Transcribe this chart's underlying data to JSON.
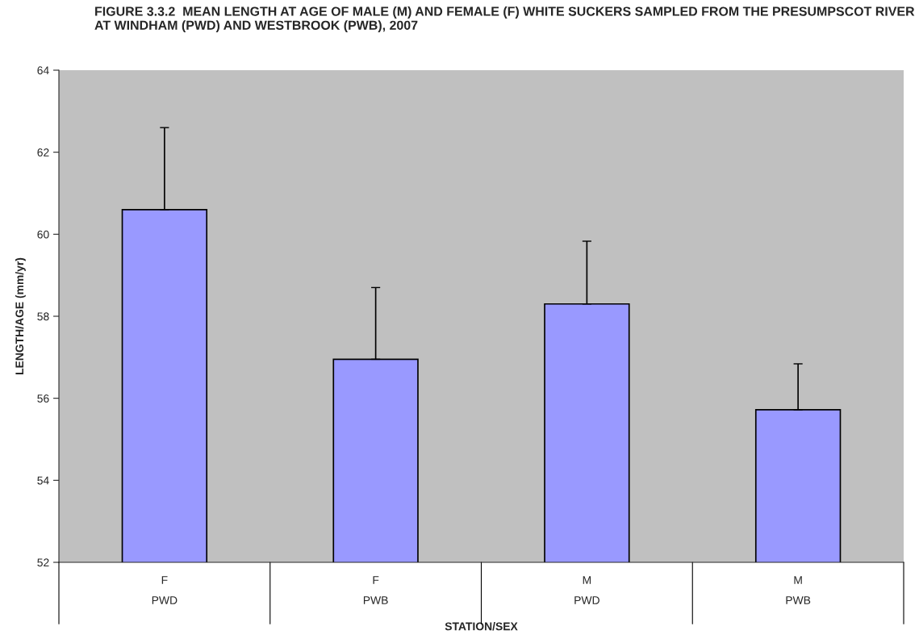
{
  "chart_data": {
    "type": "bar",
    "title": "FIGURE 3.3.2  MEAN LENGTH AT AGE OF MALE (M) AND FEMALE (F) WHITE SUCKERS SAMPLED FROM THE PRESUMPSCOT RIVER AT WINDHAM (PWD) AND WESTBROOK (PWB), 2007",
    "xlabel": "STATION/SEX",
    "ylabel": "LENGTH/AGE (mm/yr)",
    "categories": [
      "F\nPWD",
      "F\nPWB",
      "M\nPWD",
      "M\nPWB"
    ],
    "values": [
      60.6,
      56.95,
      58.3,
      55.72
    ],
    "errors": [
      [
        60.6,
        62.6
      ],
      [
        56.95,
        58.7
      ],
      [
        58.3,
        59.83
      ],
      [
        55.72,
        56.84
      ]
    ],
    "color": "#9999ff",
    "ylim": [
      52,
      64
    ],
    "yticks": [
      52,
      54,
      56,
      58,
      60,
      62,
      64
    ],
    "grid": false
  }
}
